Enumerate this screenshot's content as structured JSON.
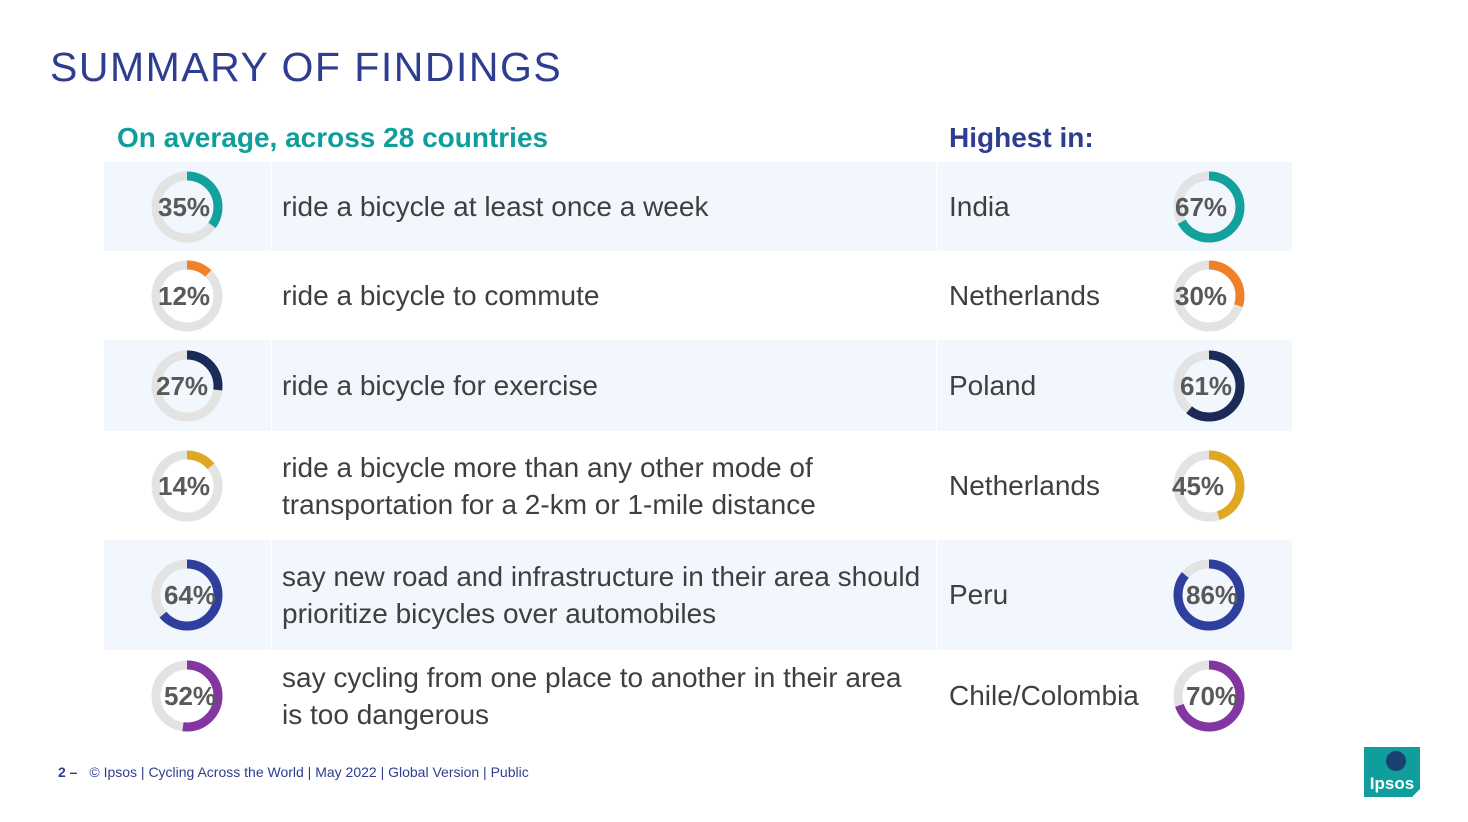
{
  "header": {
    "title": "SUMMARY OF FINDINGS",
    "left_heading": "On average, across 28 countries",
    "right_heading": "Highest in:"
  },
  "chart_data": {
    "type": "donut",
    "rows": [
      {
        "statement": "ride a bicycle at least once a week",
        "average_label": "35%",
        "average": 35,
        "country": "India",
        "highest_label": "67%",
        "highest": 67,
        "color": "#12a19c"
      },
      {
        "statement": "ride a bicycle to commute",
        "average_label": "12%",
        "average": 12,
        "country": "Netherlands",
        "highest_label": "30%",
        "highest": 30,
        "color": "#f08127"
      },
      {
        "statement": "ride a bicycle for exercise",
        "average_label": "27%",
        "average": 27,
        "country": "Poland",
        "highest_label": "61%",
        "highest": 61,
        "color": "#1b2a56"
      },
      {
        "statement": "ride a bicycle more than any other mode of transportation for a 2-km or 1-mile distance",
        "average_label": "14%",
        "average": 14,
        "country": "Netherlands",
        "highest_label": "45%",
        "highest": 45,
        "color": "#e0a722"
      },
      {
        "statement": "say new road and infrastructure in their area should prioritize bicycles over automobiles",
        "average_label": "64%",
        "average": 64,
        "country": "Peru",
        "highest_label": "86%",
        "highest": 86,
        "color": "#2f3f9e"
      },
      {
        "statement": "say cycling from one place to another in their area is too dangerous",
        "average_label": "52%",
        "average": 52,
        "country": "Chile/Colombia",
        "highest_label": "70%",
        "highest": 70,
        "color": "#8335a2"
      }
    ],
    "track_color": "#e3e3e3"
  },
  "footer": {
    "page": "2 –",
    "text": "© Ipsos | Cycling Across the World | May 2022 | Global Version | Public"
  },
  "logo": {
    "text": "Ipsos",
    "color": "#0f9e9b"
  }
}
